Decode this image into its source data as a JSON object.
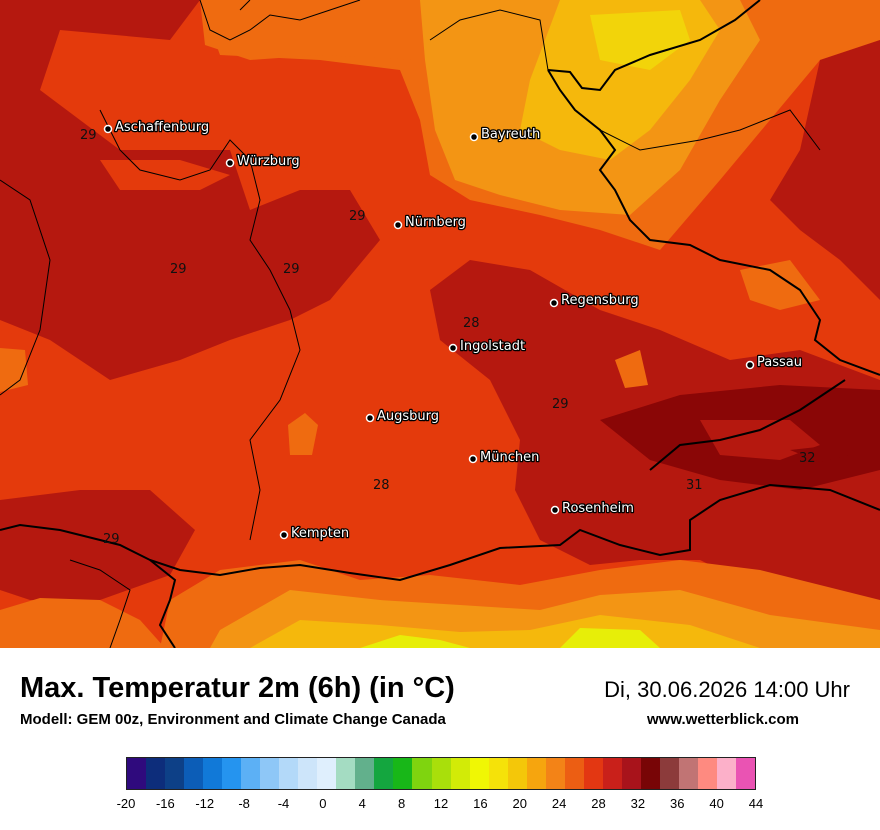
{
  "title": "Max. Temperatur 2m (6h) (in °C)",
  "datetime": "Di, 30.06.2026 14:00 Uhr",
  "model": "Modell: GEM 00z, Environment and Climate Change Canada",
  "website": "www.wetterblick.com",
  "colors": {
    "t26": "#ef6b10",
    "t28": "#e43a0c",
    "t30": "#b5180f",
    "t32": "#8a0606",
    "t24": "#f39514",
    "t22": "#f5b80c",
    "t20": "#f2d40a",
    "t18": "#e7ee08"
  },
  "cities": [
    {
      "name": "Aschaffenburg",
      "icon": "city-dot"
    },
    {
      "name": "Würzburg",
      "icon": "city-dot"
    },
    {
      "name": "Bayreuth",
      "icon": "city-dot"
    },
    {
      "name": "Nürnberg",
      "icon": "city-dot"
    },
    {
      "name": "Regensburg",
      "icon": "city-dot"
    },
    {
      "name": "Ingolstadt",
      "icon": "city-dot"
    },
    {
      "name": "Passau",
      "icon": "city-dot"
    },
    {
      "name": "Augsburg",
      "icon": "city-dot"
    },
    {
      "name": "München",
      "icon": "city-dot"
    },
    {
      "name": "Rosenheim",
      "icon": "city-dot"
    },
    {
      "name": "Kempten",
      "icon": "city-dot"
    }
  ],
  "isotherm_labels": [
    "29",
    "29",
    "29",
    "29",
    "28",
    "29",
    "28",
    "31",
    "32",
    "29"
  ],
  "legend": {
    "ticks": [
      "-20",
      "-16",
      "-12",
      "-8",
      "-4",
      "0",
      "4",
      "8",
      "12",
      "16",
      "20",
      "24",
      "28",
      "32",
      "36",
      "40",
      "44"
    ],
    "colors": [
      "#2f0a7d",
      "#0d2d7b",
      "#0d4087",
      "#0c5db7",
      "#1179d8",
      "#2594ef",
      "#5cb0f5",
      "#8ec7f7",
      "#b3d9f9",
      "#cde5fa",
      "#dfeffd",
      "#a4dcc2",
      "#62b08c",
      "#14a63f",
      "#18b718",
      "#7fd40f",
      "#a9df0b",
      "#d2eb07",
      "#f0f704",
      "#f5e209",
      "#f4c709",
      "#f6a50e",
      "#f38317",
      "#ec5e13",
      "#e33712",
      "#c9201a",
      "#a8131b",
      "#780506",
      "#8c3b3b",
      "#c17474",
      "#fe8a80",
      "#fcb0c9",
      "#ea53b3"
    ]
  }
}
